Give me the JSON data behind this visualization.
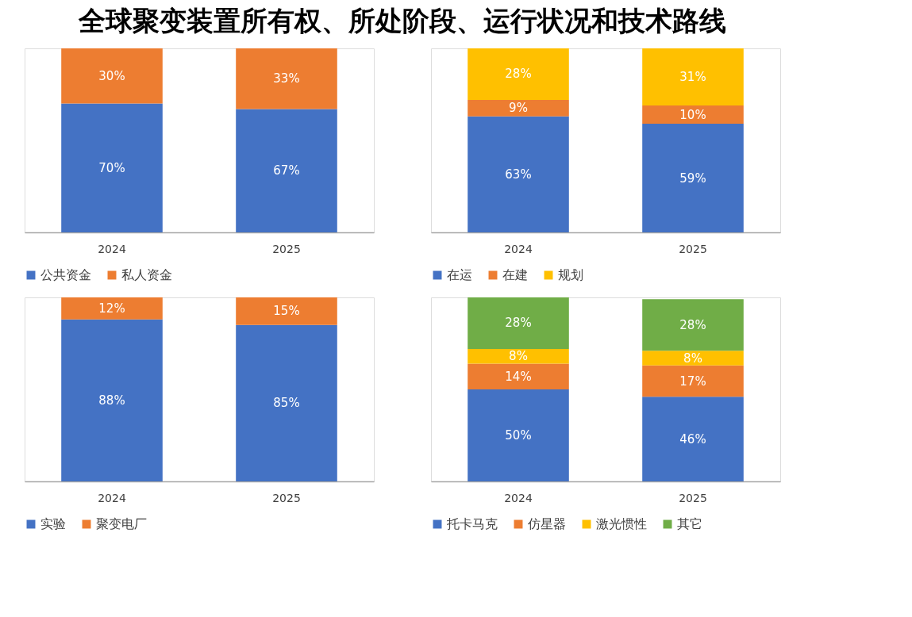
{
  "chart_data": [
    {
      "type": "bar",
      "title": "全球聚变装置所有权、所处阶段、运行状况和技术路线",
      "stacked": true,
      "categories": [
        "2024",
        "2025"
      ],
      "ylim": [
        0,
        100
      ],
      "legend": "bottom",
      "tick_labels": "x",
      "series": [
        {
          "name": "公共资金",
          "color": "#4472c4",
          "values": [
            70,
            67
          ],
          "value_labels": [
            "70%",
            "67%"
          ]
        },
        {
          "name": "私人资金",
          "color": "#ed7d31",
          "values": [
            30,
            33
          ],
          "value_labels": [
            "30%",
            "33%"
          ]
        }
      ]
    },
    {
      "type": "bar",
      "stacked": true,
      "categories": [
        "2024",
        "2025"
      ],
      "ylim": [
        0,
        100
      ],
      "legend": "bottom",
      "tick_labels": "x",
      "series": [
        {
          "name": "在运",
          "color": "#4472c4",
          "values": [
            63,
            59
          ],
          "value_labels": [
            "63%",
            "59%"
          ]
        },
        {
          "name": "在建",
          "color": "#ed7d31",
          "values": [
            9,
            10
          ],
          "value_labels": [
            "9%",
            "10%"
          ]
        },
        {
          "name": "规划",
          "color": "#ffc000",
          "values": [
            28,
            31
          ],
          "value_labels": [
            "28%",
            "31%"
          ]
        }
      ]
    },
    {
      "type": "bar",
      "stacked": true,
      "categories": [
        "2024",
        "2025"
      ],
      "ylim": [
        0,
        100
      ],
      "legend": "bottom",
      "tick_labels": "x",
      "series": [
        {
          "name": "实验",
          "color": "#4472c4",
          "values": [
            88,
            85
          ],
          "value_labels": [
            "88%",
            "85%"
          ]
        },
        {
          "name": "聚变电厂",
          "color": "#ed7d31",
          "values": [
            12,
            15
          ],
          "value_labels": [
            "12%",
            "15%"
          ]
        }
      ]
    },
    {
      "type": "bar",
      "stacked": true,
      "categories": [
        "2024",
        "2025"
      ],
      "ylim": [
        0,
        100
      ],
      "legend": "bottom",
      "tick_labels": "x",
      "series": [
        {
          "name": "托卡马克",
          "color": "#4472c4",
          "values": [
            50,
            46
          ],
          "value_labels": [
            "50%",
            "46%"
          ]
        },
        {
          "name": "仿星器",
          "color": "#ed7d31",
          "values": [
            14,
            17
          ],
          "value_labels": [
            "14%",
            "17%"
          ]
        },
        {
          "name": "激光惯性",
          "color": "#ffc000",
          "values": [
            8,
            8
          ],
          "value_labels": [
            "8%",
            "8%"
          ]
        },
        {
          "name": "其它",
          "color": "#70ad47",
          "values": [
            28,
            28
          ],
          "value_labels": [
            "28%",
            "28%"
          ]
        }
      ]
    }
  ]
}
